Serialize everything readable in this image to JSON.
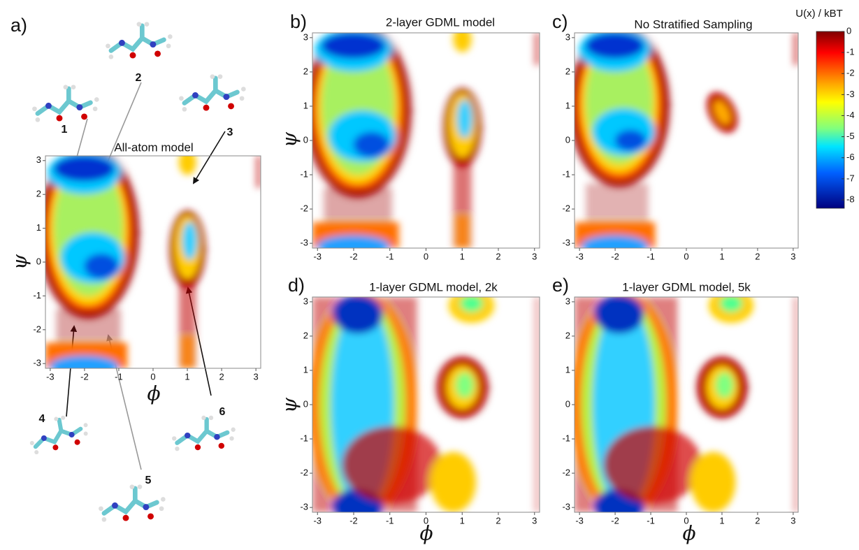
{
  "chart_data": [
    {
      "type": "heatmap",
      "panel": "a)",
      "title": "All-atom model",
      "xlabel": "ϕ",
      "ylabel": "ψ",
      "xlim": [
        -3.14,
        3.14
      ],
      "ylim": [
        -3.14,
        3.14
      ],
      "xticks": [
        -3,
        -2,
        -1,
        0,
        1,
        2,
        3
      ],
      "yticks": [
        -3,
        -2,
        -1,
        0,
        1,
        2,
        3
      ]
    },
    {
      "type": "heatmap",
      "panel": "b)",
      "title": "2-layer GDML model",
      "ylabel": "ψ",
      "xlim": [
        -3.14,
        3.14
      ],
      "ylim": [
        -3.14,
        3.14
      ],
      "xticks": [
        -3,
        -2,
        -1,
        0,
        1,
        2,
        3
      ],
      "yticks": [
        -3,
        -2,
        -1,
        0,
        1,
        2,
        3
      ]
    },
    {
      "type": "heatmap",
      "panel": "c)",
      "title": "No Stratified Sampling",
      "xlim": [
        -3.14,
        3.14
      ],
      "ylim": [
        -3.14,
        3.14
      ],
      "xticks": [
        -3,
        -2,
        -1,
        0,
        1,
        2,
        3
      ],
      "yticks": [
        -3,
        -2,
        -1,
        0,
        1,
        2,
        3
      ]
    },
    {
      "type": "heatmap",
      "panel": "d)",
      "title": "1-layer GDML model, 2k",
      "xlabel": "ϕ",
      "ylabel": "ψ",
      "xlim": [
        -3.14,
        3.14
      ],
      "ylim": [
        -3.14,
        3.14
      ],
      "xticks": [
        -3,
        -2,
        -1,
        0,
        1,
        2,
        3
      ],
      "yticks": [
        -3,
        -2,
        -1,
        0,
        1,
        2,
        3
      ]
    },
    {
      "type": "heatmap",
      "panel": "e)",
      "title": "1-layer GDML model, 5k",
      "xlabel": "ϕ",
      "xlim": [
        -3.14,
        3.14
      ],
      "ylim": [
        -3.14,
        3.14
      ],
      "xticks": [
        -3,
        -2,
        -1,
        0,
        1,
        2,
        3
      ],
      "yticks": [
        -3,
        -2,
        -1,
        0,
        1,
        2,
        3
      ]
    }
  ],
  "colorbar": {
    "label": "U(x) / kBT",
    "colormap": "jet",
    "lim": [
      -8.4,
      0
    ],
    "ticks": [
      0,
      -1,
      -2,
      -3,
      -4,
      -5,
      -6,
      -7,
      -8
    ]
  },
  "annotations": [
    "1",
    "2",
    "3",
    "4",
    "5",
    "6"
  ]
}
